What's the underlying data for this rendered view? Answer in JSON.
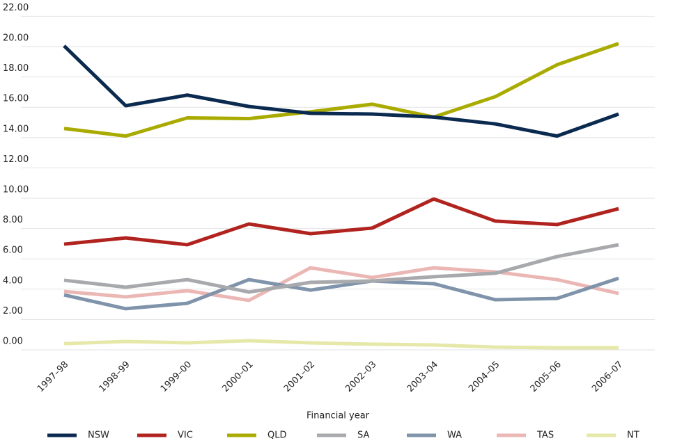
{
  "chart_data": {
    "type": "line",
    "xlabel": "Financial year",
    "categories": [
      "1997–98",
      "1998–99",
      "1999–00",
      "2000–01",
      "2001–02",
      "2002–03",
      "2003–04",
      "2004–05",
      "2005–06",
      "2006–07"
    ],
    "series": [
      {
        "name": "NSW",
        "color": "#0b2a4f",
        "values": [
          20.05,
          16.1,
          16.8,
          16.05,
          15.6,
          15.55,
          15.35,
          14.9,
          14.1,
          15.55
        ]
      },
      {
        "name": "VIC",
        "color": "#b0231f",
        "values": [
          6.97,
          7.38,
          6.93,
          8.3,
          7.66,
          8.03,
          9.95,
          8.49,
          8.26,
          9.31
        ]
      },
      {
        "name": "QLD",
        "color": "#a9ab00",
        "values": [
          14.6,
          14.1,
          15.3,
          15.25,
          15.7,
          16.2,
          15.35,
          16.7,
          18.8,
          20.2
        ]
      },
      {
        "name": "SA",
        "color": "#a7a9ac",
        "values": [
          4.59,
          4.13,
          4.63,
          3.81,
          4.45,
          4.54,
          4.82,
          5.05,
          6.15,
          6.93
        ]
      },
      {
        "name": "WA",
        "color": "#7f93aa",
        "values": [
          3.62,
          2.71,
          3.07,
          4.63,
          3.94,
          4.54,
          4.36,
          3.3,
          3.39,
          4.72
        ]
      },
      {
        "name": "TAS",
        "color": "#ebb7b4",
        "values": [
          3.85,
          3.49,
          3.9,
          3.26,
          5.41,
          4.77,
          5.41,
          5.14,
          4.63,
          3.72
        ]
      },
      {
        "name": "NT",
        "color": "#e6e8a9",
        "values": [
          0.41,
          0.55,
          0.46,
          0.6,
          0.46,
          0.37,
          0.32,
          0.18,
          0.14,
          0.14
        ]
      }
    ],
    "ylim": [
      0,
      22
    ],
    "yticks": [
      {
        "value": 0,
        "label": "0.00"
      },
      {
        "value": 2,
        "label": "2.00"
      },
      {
        "value": 4,
        "label": "4.00"
      },
      {
        "value": 6,
        "label": "6.00"
      },
      {
        "value": 8,
        "label": "8.00"
      },
      {
        "value": 10,
        "label": "10.00"
      },
      {
        "value": 12,
        "label": "12.00"
      },
      {
        "value": 14,
        "label": "14.00"
      },
      {
        "value": 16,
        "label": "16.00"
      },
      {
        "value": 18,
        "label": "18.00"
      },
      {
        "value": 20,
        "label": "20.00"
      },
      {
        "value": 22,
        "label": "22.00"
      }
    ],
    "grid": true,
    "legend": "bottom"
  }
}
